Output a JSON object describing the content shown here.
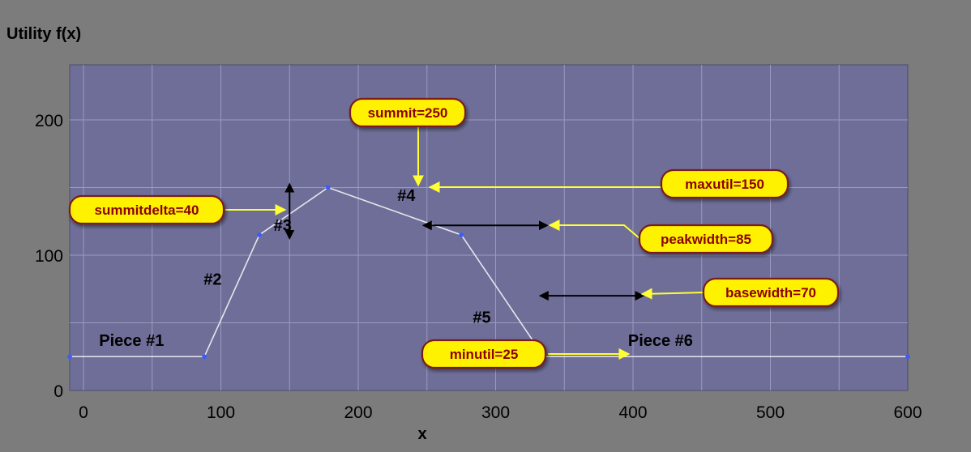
{
  "chart_data": {
    "type": "line",
    "ylabel": "Utility f(x)",
    "xlabel": "x",
    "xlim": [
      -10,
      600
    ],
    "ylim": [
      0,
      250
    ],
    "xticks": [
      0,
      100,
      200,
      300,
      400,
      500,
      600
    ],
    "yticks": [
      0,
      100,
      200
    ],
    "grid": true,
    "series": [
      {
        "points": [
          {
            "x": -10,
            "y": 25
          },
          {
            "x": 88,
            "y": 25
          },
          {
            "x": 128,
            "y": 115
          },
          {
            "x": 178,
            "y": 150
          },
          {
            "x": 275,
            "y": 115
          },
          {
            "x": 335,
            "y": 25
          },
          {
            "x": 600,
            "y": 25
          }
        ]
      }
    ],
    "piece_labels": [
      {
        "text": "Piece #1",
        "x": 35,
        "y": 33
      },
      {
        "text": "#2",
        "x": 94,
        "y": 78
      },
      {
        "text": "#3",
        "x": 145,
        "y": 118
      },
      {
        "text": "#4",
        "x": 235,
        "y": 140
      },
      {
        "text": "#5",
        "x": 290,
        "y": 50
      },
      {
        "text": "Piece #6",
        "x": 420,
        "y": 33
      }
    ],
    "annotations": [
      {
        "text": "summit=250"
      },
      {
        "text": "maxutil=150"
      },
      {
        "text": "summitdelta=40"
      },
      {
        "text": "peakwidth=85"
      },
      {
        "text": "basewidth=70"
      },
      {
        "text": "minutil=25"
      }
    ]
  },
  "colors": {
    "background": "#7c7c7c",
    "plot_area": "#6e6e98",
    "grid": "#9a9ac0",
    "line": "#e6e6ee",
    "point": "#3a5cff",
    "callout_fill": "#fff200",
    "callout_border": "#7a1a1a",
    "callout_text": "#8b0000",
    "arrow": "#ffff33",
    "dimension": "#000000"
  }
}
